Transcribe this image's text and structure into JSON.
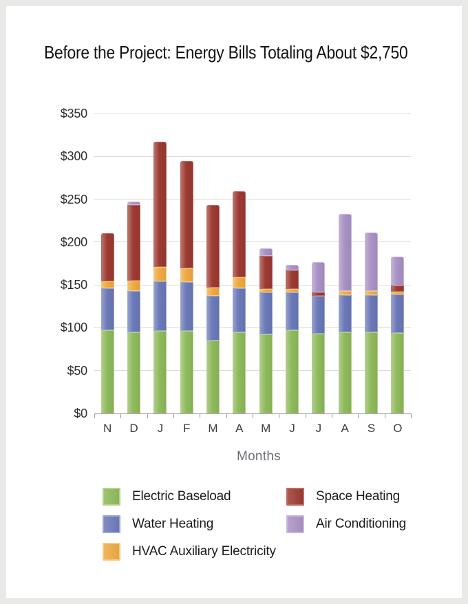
{
  "title": "Before the Project: Energy Bills Totaling About $2,750",
  "chart_data": {
    "type": "bar",
    "stacked": true,
    "title": "Before the Project: Energy Bills Totaling About $2,750",
    "x": [
      "N",
      "D",
      "J",
      "F",
      "M",
      "A",
      "M",
      "J",
      "J",
      "A",
      "S",
      "O"
    ],
    "xlabel": "Months",
    "ylabel": "",
    "ylim": [
      0,
      350
    ],
    "ytick_step": 50,
    "ytick_labels": [
      "$0",
      "$50",
      "$100",
      "$150",
      "$200",
      "$250",
      "$300",
      "$350"
    ],
    "grid": true,
    "legend_position": "bottom",
    "series": [
      {
        "name": "Electric Baseload",
        "color": "#8eba5b",
        "edge": "#b7d18f",
        "values": [
          97,
          95,
          96,
          96,
          85,
          95,
          92,
          97,
          93,
          95,
          95,
          94
        ]
      },
      {
        "name": "Water Heating",
        "color": "#6b79b8",
        "edge": "#9aa6d0",
        "values": [
          49,
          48,
          58,
          57,
          52,
          51,
          49,
          44,
          44,
          43,
          43,
          45
        ]
      },
      {
        "name": "HVAC Auxiliary Electricity",
        "color": "#eeaa40",
        "edge": "#f4c987",
        "values": [
          8,
          12,
          17,
          16,
          10,
          13,
          4,
          4,
          0,
          5,
          5,
          3
        ]
      },
      {
        "name": "Space Heating",
        "color": "#9d3a32",
        "edge": "#b96a60",
        "values": [
          56,
          88,
          146,
          126,
          96,
          100,
          39,
          22,
          4,
          0,
          0,
          7
        ]
      },
      {
        "name": "Air Conditioning",
        "color": "#a992c5",
        "edge": "#c8b8db",
        "values": [
          0,
          4,
          0,
          0,
          0,
          0,
          9,
          6,
          36,
          90,
          68,
          34
        ]
      }
    ],
    "monthly_totals": [
      210,
      247,
      317,
      295,
      243,
      259,
      193,
      173,
      177,
      233,
      211,
      183
    ],
    "annual_total_approx": 2750
  },
  "legend": {
    "items": [
      "Electric Baseload",
      "Space Heating",
      "Water Heating",
      "Air Conditioning",
      "HVAC Auxiliary Electricity"
    ]
  }
}
